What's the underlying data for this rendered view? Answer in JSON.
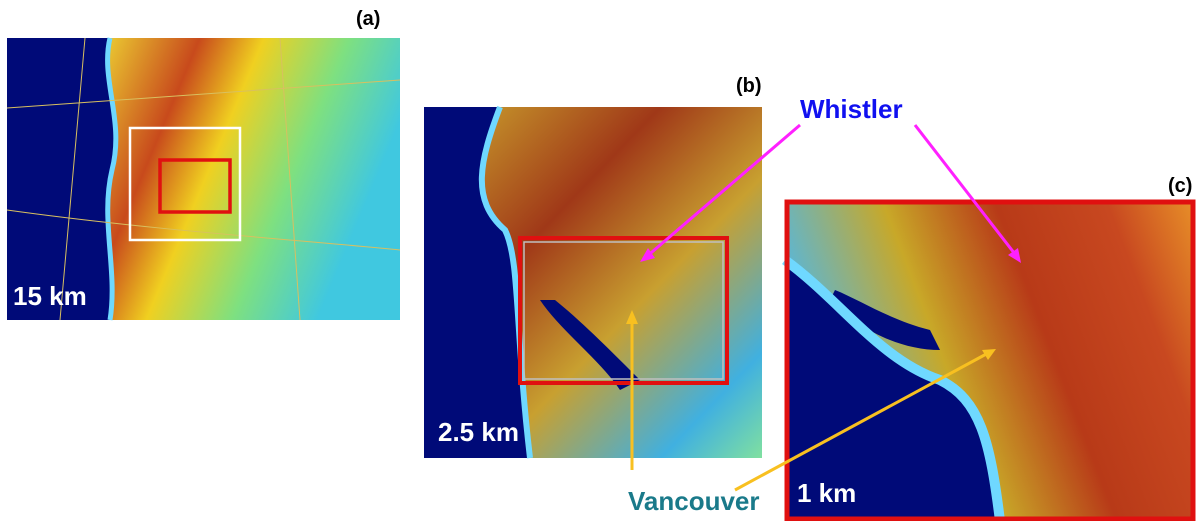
{
  "panels": [
    {
      "label": "(a)",
      "scale": "15 km"
    },
    {
      "label": "(b)",
      "scale": "2.5 km"
    },
    {
      "label": "(c)",
      "scale": "1 km"
    }
  ],
  "annotations": {
    "whistler": "Whistler",
    "vancouver": "Vancouver"
  }
}
